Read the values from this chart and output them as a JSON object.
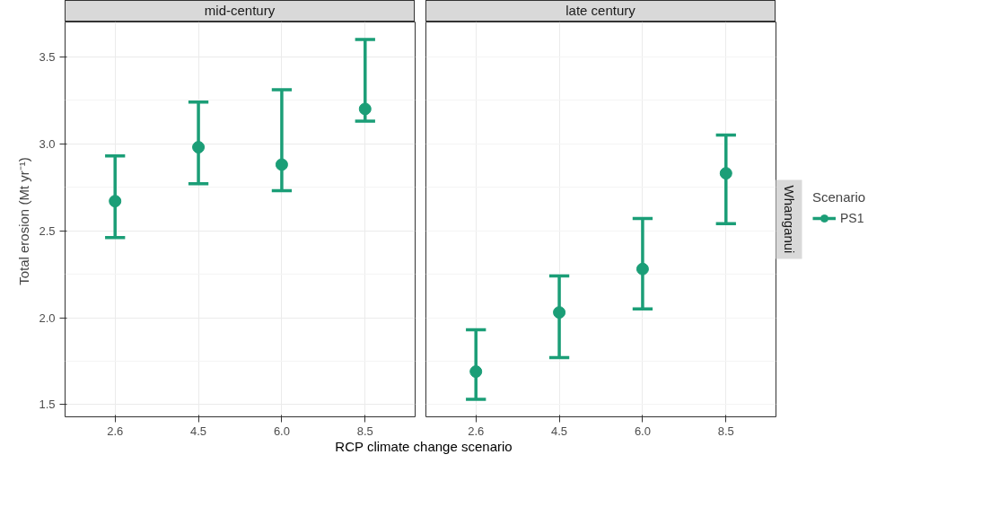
{
  "chart_data": [
    {
      "type": "scatter",
      "title": "mid-century",
      "xlabel": "RCP climate change scenario",
      "ylabel": "Total erosion  (Mt yr⁻¹)",
      "categories": [
        "2.6",
        "4.5",
        "6.0",
        "8.5"
      ],
      "series": [
        {
          "name": "PS1",
          "color": "#1b9e77",
          "values": [
            2.67,
            2.98,
            2.88,
            3.2
          ],
          "errors": [
            [
              2.46,
              2.93
            ],
            [
              2.77,
              3.24
            ],
            [
              2.73,
              3.31
            ],
            [
              3.13,
              3.6
            ]
          ]
        }
      ],
      "ylim": [
        1.43,
        3.7
      ],
      "yticks": [
        {
          "value": 1.5,
          "label": "1.5"
        },
        {
          "value": 1.75,
          "label": null
        },
        {
          "value": 2.0,
          "label": "2.0"
        },
        {
          "value": 2.25,
          "label": null
        },
        {
          "value": 2.5,
          "label": "2.5"
        },
        {
          "value": 2.75,
          "label": null
        },
        {
          "value": 3.0,
          "label": "3.0"
        },
        {
          "value": 3.25,
          "label": null
        },
        {
          "value": 3.5,
          "label": "3.5"
        }
      ],
      "grid": true,
      "marker": "circle",
      "legend": "right"
    },
    {
      "type": "scatter",
      "title": "late century",
      "annotations": [
        "Whanganui"
      ],
      "legend_title": "Scenario",
      "categories": [
        "2.6",
        "4.5",
        "6.0",
        "8.5"
      ],
      "series": [
        {
          "name": "PS1",
          "color": "#1b9e77",
          "values": [
            1.69,
            2.03,
            2.28,
            2.83
          ],
          "errors": [
            [
              1.53,
              1.93
            ],
            [
              1.77,
              2.24
            ],
            [
              2.05,
              2.57
            ],
            [
              2.54,
              3.05
            ]
          ]
        }
      ],
      "ylim": [
        1.43,
        3.7
      ],
      "yticks": [
        {
          "value": 1.5,
          "label": null
        },
        {
          "value": 1.75,
          "label": null
        },
        {
          "value": 2.0,
          "label": null
        },
        {
          "value": 2.25,
          "label": null
        },
        {
          "value": 2.5,
          "label": null
        },
        {
          "value": 2.75,
          "label": null
        },
        {
          "value": 3.0,
          "label": null
        },
        {
          "value": 3.25,
          "label": null
        },
        {
          "value": 3.5,
          "label": null
        }
      ],
      "grid": true,
      "marker": "circle",
      "legend": "right",
      "tick_labels": "x"
    }
  ]
}
